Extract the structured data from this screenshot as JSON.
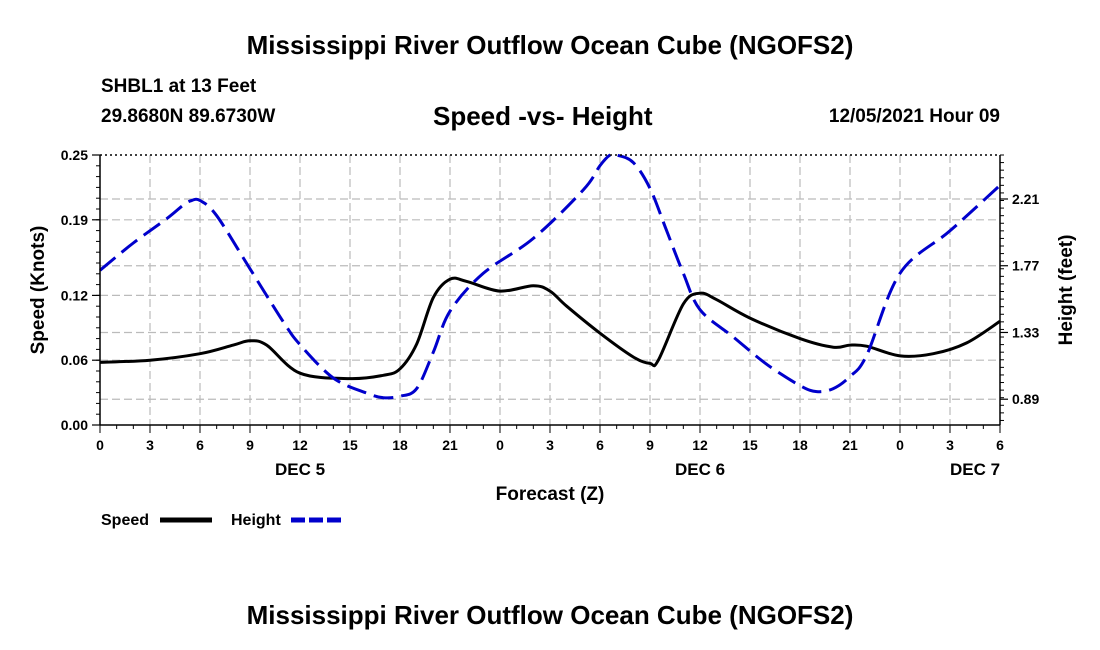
{
  "header": {
    "title": "Mississippi River Outflow Ocean Cube (NGOFS2)",
    "station": "SHBL1 at 13 Feet",
    "coordinates": "29.8680N  89.6730W",
    "subtitle": "Speed -vs- Height",
    "datetime": "12/05/2021 Hour 09"
  },
  "footer": {
    "title": "Mississippi River Outflow Ocean Cube (NGOFS2)"
  },
  "colors": {
    "speed": "#000000",
    "height": "#0000cc",
    "grid": "#bbbbbb"
  },
  "chart_data": {
    "type": "line",
    "title": "Speed -vs- Height",
    "xlabel": "Forecast (Z)",
    "ylabel": "Speed (Knots)",
    "y2label": "Height (feet)",
    "grid": true,
    "xlim": [
      0,
      54
    ],
    "ylim": [
      0,
      0.25
    ],
    "y2lim": [
      0.72,
      2.5
    ],
    "x_ticks": [
      0,
      3,
      6,
      9,
      12,
      15,
      18,
      21,
      24,
      27,
      30,
      33,
      36,
      39,
      42,
      45,
      48,
      51,
      54
    ],
    "x_tick_labels": [
      "0",
      "3",
      "6",
      "9",
      "12",
      "15",
      "18",
      "21",
      "0",
      "3",
      "6",
      "9",
      "12",
      "15",
      "18",
      "21",
      "0",
      "3",
      "6"
    ],
    "date_labels": [
      {
        "x": 12,
        "label": "DEC 5"
      },
      {
        "x": 36,
        "label": "DEC 6"
      },
      {
        "x": 52.5,
        "label": "DEC 7"
      }
    ],
    "y_ticks": [
      0.0,
      0.06,
      0.12,
      0.19,
      0.25
    ],
    "y_tick_labels": [
      "0.00",
      "0.06",
      "0.12",
      "0.19",
      "0.25"
    ],
    "y2_ticks": [
      0.89,
      1.33,
      1.77,
      2.21
    ],
    "y2_tick_labels": [
      "0.89",
      "1.33",
      "1.77",
      "2.21"
    ],
    "legend": [
      {
        "name": "Speed",
        "style": "solid"
      },
      {
        "name": "Height",
        "style": "dashed"
      }
    ],
    "series": [
      {
        "name": "Speed",
        "axis": "left",
        "style": "solid",
        "x": [
          0,
          3,
          6,
          8,
          9,
          10,
          12,
          15,
          17,
          18,
          19,
          20,
          21,
          22,
          24,
          26,
          27,
          28,
          30,
          32,
          33,
          33.5,
          35,
          36,
          37,
          39,
          42,
          44,
          45,
          46,
          48,
          50,
          52,
          54
        ],
        "y": [
          0.058,
          0.06,
          0.066,
          0.074,
          0.078,
          0.074,
          0.048,
          0.043,
          0.046,
          0.052,
          0.075,
          0.118,
          0.135,
          0.133,
          0.124,
          0.129,
          0.124,
          0.11,
          0.085,
          0.063,
          0.057,
          0.06,
          0.112,
          0.122,
          0.116,
          0.099,
          0.08,
          0.072,
          0.074,
          0.073,
          0.064,
          0.066,
          0.076,
          0.096
        ]
      },
      {
        "name": "Height",
        "axis": "right",
        "style": "dashed",
        "x": [
          0,
          2,
          4,
          5,
          5.5,
          6,
          7,
          9,
          11,
          12,
          14,
          16,
          17,
          18,
          19,
          20,
          21,
          23,
          26,
          29,
          30,
          30.6,
          31,
          32,
          33,
          34,
          35,
          36,
          38,
          40,
          42,
          43,
          44,
          45,
          46,
          48,
          51,
          54
        ],
        "y": [
          1.74,
          1.92,
          2.08,
          2.17,
          2.2,
          2.2,
          2.1,
          1.75,
          1.4,
          1.25,
          1.03,
          0.93,
          0.9,
          0.91,
          0.96,
          1.2,
          1.47,
          1.72,
          1.95,
          2.27,
          2.43,
          2.5,
          2.5,
          2.45,
          2.28,
          2.0,
          1.72,
          1.48,
          1.3,
          1.12,
          0.98,
          0.94,
          0.96,
          1.04,
          1.18,
          1.72,
          2.0,
          2.3
        ]
      }
    ]
  }
}
